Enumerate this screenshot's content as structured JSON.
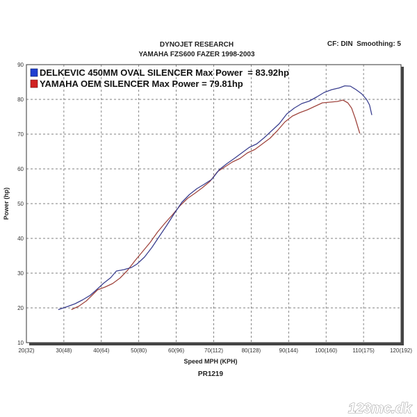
{
  "header": {
    "title": "DYNOJET RESEARCH",
    "subtitle": "YAMAHA FZS600 FAZER 1998-2003",
    "right_info": "CF: DIN  Smoothing: 5"
  },
  "footer": {
    "run_id": "PR1219",
    "watermark": "123mc.dk"
  },
  "chart_data": {
    "type": "line",
    "title": "DYNOJET RESEARCH",
    "subtitle": "YAMAHA FZS600 FAZER 1998-2003",
    "xlabel": "Speed MPH (KPH)",
    "ylabel": "Power (hp)",
    "xlim": [
      20,
      120
    ],
    "ylim": [
      10,
      90
    ],
    "x_ticks": [
      {
        "v": 20,
        "label": "20(32)"
      },
      {
        "v": 30,
        "label": "30(48)"
      },
      {
        "v": 40,
        "label": "40(64)"
      },
      {
        "v": 50,
        "label": "50(80)"
      },
      {
        "v": 60,
        "label": "60(96)"
      },
      {
        "v": 70,
        "label": "70(112)"
      },
      {
        "v": 80,
        "label": "80(128)"
      },
      {
        "v": 90,
        "label": "90(144)"
      },
      {
        "v": 100,
        "label": "100(160)"
      },
      {
        "v": 110,
        "label": "110(175)"
      },
      {
        "v": 120,
        "label": "120(192)"
      }
    ],
    "y_ticks": [
      10,
      20,
      30,
      40,
      50,
      60,
      70,
      80,
      90
    ],
    "grid": true,
    "legend_position": "top-left",
    "series": [
      {
        "name": "DELKEVIC 450MM OVAL SILENCER Max Power  = 83.92hp",
        "color": "#3a3f8f",
        "swatch": "#1f3fd0",
        "points": [
          [
            28.5,
            19.5
          ],
          [
            31,
            20.4
          ],
          [
            33,
            21.2
          ],
          [
            35,
            22.3
          ],
          [
            37,
            23.6
          ],
          [
            38.5,
            25.0
          ],
          [
            40.5,
            27.0
          ],
          [
            42.5,
            28.7
          ],
          [
            44,
            30.6
          ],
          [
            46,
            31.0
          ],
          [
            48,
            31.6
          ],
          [
            49.5,
            32.6
          ],
          [
            51.5,
            34.6
          ],
          [
            53.5,
            37.4
          ],
          [
            55.5,
            40.6
          ],
          [
            57.5,
            43.8
          ],
          [
            59.5,
            47.2
          ],
          [
            61.5,
            50.4
          ],
          [
            63.5,
            52.6
          ],
          [
            65.5,
            54.3
          ],
          [
            67.5,
            55.6
          ],
          [
            69.5,
            57.0
          ],
          [
            71.5,
            59.8
          ],
          [
            73.5,
            61.5
          ],
          [
            75.5,
            63.0
          ],
          [
            77.5,
            64.6
          ],
          [
            79.5,
            66.2
          ],
          [
            81.5,
            67.2
          ],
          [
            83.5,
            69.0
          ],
          [
            85.5,
            71.0
          ],
          [
            87.5,
            73.0
          ],
          [
            89.5,
            75.8
          ],
          [
            91.5,
            77.5
          ],
          [
            93.5,
            78.8
          ],
          [
            95.5,
            79.5
          ],
          [
            97.5,
            80.7
          ],
          [
            99.5,
            82.0
          ],
          [
            101.5,
            82.8
          ],
          [
            103.5,
            83.3
          ],
          [
            105,
            83.9
          ],
          [
            106.5,
            83.8
          ],
          [
            108,
            82.8
          ],
          [
            109.5,
            81.6
          ],
          [
            110.8,
            80.0
          ],
          [
            111.6,
            78.4
          ],
          [
            112.2,
            75.5
          ]
        ]
      },
      {
        "name": "YAMAHA OEM SILENCER Max Power = 79.81hp",
        "color": "#a0463f",
        "swatch": "#d02222",
        "points": [
          [
            32,
            19.5
          ],
          [
            34,
            20.5
          ],
          [
            36,
            22.0
          ],
          [
            37.5,
            23.6
          ],
          [
            39,
            25.2
          ],
          [
            41,
            26.0
          ],
          [
            43,
            27.0
          ],
          [
            45,
            28.6
          ],
          [
            47,
            30.8
          ],
          [
            49,
            33.6
          ],
          [
            51,
            36.2
          ],
          [
            53,
            38.8
          ],
          [
            55,
            41.8
          ],
          [
            57,
            44.4
          ],
          [
            59,
            46.8
          ],
          [
            61,
            49.4
          ],
          [
            63,
            51.5
          ],
          [
            65,
            53.0
          ],
          [
            67,
            54.6
          ],
          [
            69,
            56.4
          ],
          [
            71,
            59.2
          ],
          [
            73,
            60.6
          ],
          [
            75,
            62.0
          ],
          [
            77,
            63.0
          ],
          [
            79,
            64.6
          ],
          [
            81,
            65.6
          ],
          [
            83,
            67.2
          ],
          [
            85,
            68.8
          ],
          [
            87,
            71.0
          ],
          [
            89,
            73.5
          ],
          [
            91,
            75.2
          ],
          [
            93,
            76.2
          ],
          [
            95,
            77.0
          ],
          [
            97,
            78.0
          ],
          [
            99,
            79.0
          ],
          [
            101,
            79.2
          ],
          [
            103,
            79.4
          ],
          [
            104.5,
            79.8
          ],
          [
            105.8,
            79.0
          ],
          [
            106.8,
            77.5
          ],
          [
            107.8,
            74.5
          ],
          [
            109,
            70.2
          ]
        ]
      }
    ]
  }
}
